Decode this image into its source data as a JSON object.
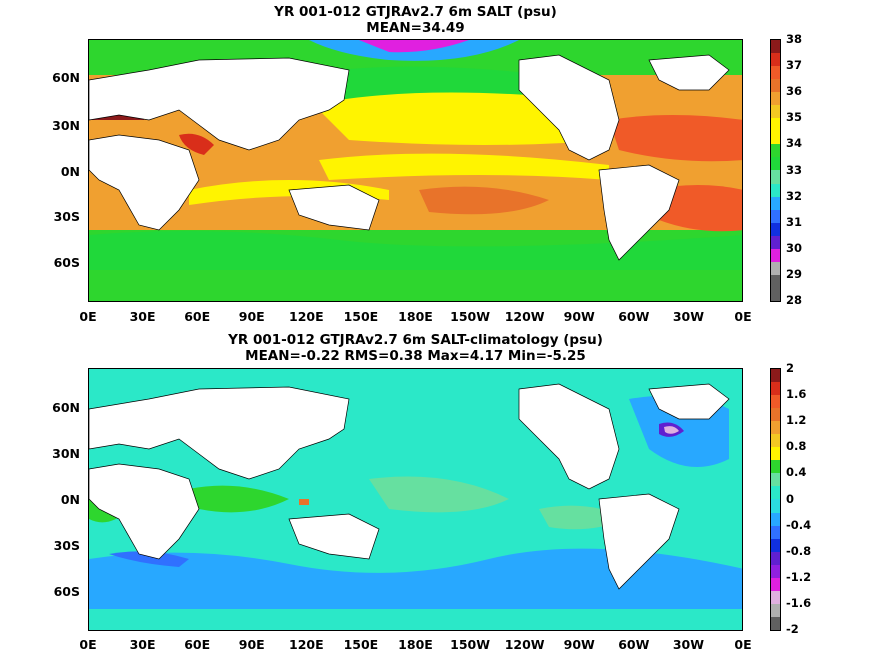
{
  "panels": [
    {
      "title_line1": "YR 001-012 GTJRAv2.7 6m SALT (psu)",
      "title_line2": "MEAN=34.49",
      "colorbar_labels": [
        "38",
        "37",
        "36",
        "35",
        "34",
        "33",
        "32",
        "31",
        "30",
        "29",
        "28"
      ],
      "colorbar_colors": [
        "#8b1a1a",
        "#d92e1a",
        "#f05a28",
        "#e8732a",
        "#f0a030",
        "#f3c823",
        "#fff400",
        "#fff400",
        "#2ed62e",
        "#20d83a",
        "#66e0a0",
        "#2be8c8",
        "#28a8ff",
        "#3070ff",
        "#1030e0",
        "#6020d0",
        "#e020e0",
        "#b0b0b0",
        "#606060",
        "#606060"
      ],
      "ocean_color": "#f0a030"
    },
    {
      "title_line1": "YR 001-012 GTJRAv2.7 6m SALT-climatology (psu)",
      "title_line2": "MEAN=-0.22   RMS=0.38   Max=4.17   Min=-5.25",
      "colorbar_labels": [
        "2",
        "1.6",
        "1.2",
        "0.8",
        "0.4",
        "0",
        "-0.4",
        "-0.8",
        "-1.2",
        "-1.6",
        "-2"
      ],
      "colorbar_colors": [
        "#8b1a1a",
        "#d92e1a",
        "#f05a28",
        "#e8732a",
        "#f0a030",
        "#f3c823",
        "#fff400",
        "#2ed62e",
        "#66e0a0",
        "#2be8c8",
        "#2bdce0",
        "#28a8ff",
        "#3070ff",
        "#1030e0",
        "#6020d0",
        "#9020e0",
        "#e020e0",
        "#e0b0e0",
        "#b0b0b0",
        "#606060"
      ],
      "ocean_color": "#2be8c8"
    }
  ],
  "lat_labels": [
    "60N",
    "30N",
    "0N",
    "30S",
    "60S"
  ],
  "lon_labels": [
    "0E",
    "30E",
    "60E",
    "90E",
    "120E",
    "150E",
    "180E",
    "150W",
    "120W",
    "90W",
    "60W",
    "30W",
    "0E"
  ]
}
